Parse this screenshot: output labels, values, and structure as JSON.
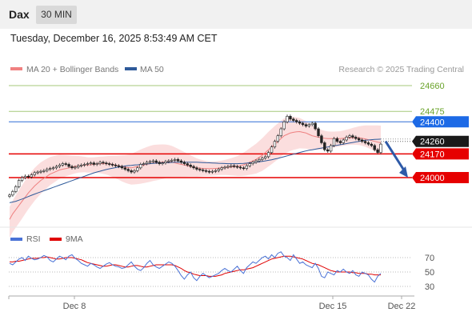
{
  "header": {
    "symbol": "Dax",
    "timeframe": "30 MIN"
  },
  "timestamp": "Tuesday, December 16, 2025 8:53:49 AM CET",
  "legend": {
    "items": [
      {
        "label": "MA 20 + Bollinger Bands",
        "color": "#f08080"
      },
      {
        "label": "MA 50",
        "color": "#2e5a9a"
      }
    ],
    "credit": "Research © 2025 Trading Central"
  },
  "rsi_legend": {
    "items": [
      {
        "label": "RSI",
        "color": "#4a72d6"
      },
      {
        "label": "9MA",
        "color": "#e00000"
      }
    ]
  },
  "chart_data": [
    {
      "type": "candlestick",
      "title": "",
      "x_ticks": [
        "Dec 8",
        "Dec 15",
        "Dec 22"
      ],
      "price_levels": [
        {
          "value": 24660,
          "label": "24660",
          "style": "green-line"
        },
        {
          "value": 24475,
          "label": "24475",
          "style": "green-line"
        },
        {
          "value": 24400,
          "label": "24400",
          "style": "blue-tag"
        },
        {
          "value": 24260,
          "label": "24260",
          "style": "last-price-tag"
        },
        {
          "value": 24170,
          "label": "24170",
          "style": "red-tag"
        },
        {
          "value": 24000,
          "label": "24000",
          "style": "red-tag"
        }
      ],
      "close_series": [
        23875,
        23900,
        23935,
        23980,
        24000,
        24010,
        24005,
        24020,
        24035,
        24040,
        24045,
        24050,
        24060,
        24065,
        24070,
        24080,
        24090,
        24100,
        24095,
        24080,
        24070,
        24075,
        24085,
        24090,
        24095,
        24100,
        24105,
        24095,
        24100,
        24110,
        24105,
        24100,
        24095,
        24090,
        24085,
        24080,
        24070,
        24060,
        24050,
        24040,
        24050,
        24070,
        24095,
        24100,
        24110,
        24115,
        24120,
        24110,
        24100,
        24105,
        24115,
        24120,
        24125,
        24130,
        24120,
        24110,
        24100,
        24090,
        24080,
        24070,
        24060,
        24055,
        24050,
        24045,
        24040,
        24045,
        24050,
        24060,
        24070,
        24075,
        24080,
        24085,
        24080,
        24075,
        24070,
        24065,
        24085,
        24100,
        24110,
        24120,
        24130,
        24140,
        24150,
        24180,
        24220,
        24260,
        24300,
        24350,
        24400,
        24440,
        24420,
        24410,
        24400,
        24390,
        24380,
        24370,
        24380,
        24390,
        24350,
        24300,
        24250,
        24200,
        24190,
        24230,
        24280,
        24260,
        24250,
        24270,
        24290,
        24300,
        24290,
        24280,
        24270,
        24260,
        24250,
        24240,
        24230,
        24200,
        24180,
        24240
      ],
      "ma20_series": [
        23700,
        23740,
        23770,
        23800,
        23830,
        23860,
        23890,
        23915,
        23940,
        23960,
        23980,
        23995,
        24010,
        24025,
        24035,
        24045,
        24055,
        24060,
        24065,
        24070,
        24075,
        24080,
        24085,
        24088,
        24090,
        24090,
        24092,
        24095,
        24098,
        24100,
        24100,
        24100,
        24098,
        24095,
        24090,
        24085,
        24080,
        24075,
        24072,
        24070,
        24075,
        24080,
        24085,
        24090,
        24095,
        24100,
        24104,
        24106,
        24108,
        24110,
        24112,
        24112,
        24110,
        24105,
        24100,
        24095,
        24090,
        24085,
        24080,
        24075,
        24070,
        24068,
        24066,
        24065,
        24064,
        24065,
        24066,
        24068,
        24070,
        24072,
        24074,
        24076,
        24078,
        24080,
        24085,
        24092,
        24100,
        24110,
        24120,
        24130,
        24145,
        24160,
        24180,
        24200,
        24220,
        24240,
        24260,
        24280,
        24300,
        24310,
        24320,
        24325,
        24328,
        24330,
        24325,
        24320,
        24310,
        24300,
        24295,
        24290,
        24285,
        24282,
        24280,
        24280,
        24280,
        24280,
        24280,
        24282,
        24284,
        24285,
        24286,
        24286,
        24285,
        24282,
        24278,
        24272,
        24266,
        24260,
        24255,
        24250
      ],
      "ma50_series": [
        23820,
        23825,
        23830,
        23838,
        23846,
        23855,
        23864,
        23873,
        23882,
        23890,
        23898,
        23906,
        23914,
        23922,
        23930,
        23938,
        23946,
        23954,
        23962,
        23970,
        23978,
        23986,
        23994,
        24002,
        24010,
        24018,
        24026,
        24034,
        24040,
        24046,
        24052,
        24058,
        24063,
        24068,
        24072,
        24076,
        24080,
        24083,
        24086,
        24088,
        24090,
        24092,
        24094,
        24096,
        24098,
        24100,
        24102,
        24104,
        24105,
        24106,
        24107,
        24108,
        24109,
        24110,
        24110,
        24110,
        24110,
        24110,
        24110,
        24110,
        24110,
        24109,
        24108,
        24107,
        24106,
        24105,
        24104,
        24103,
        24102,
        24101,
        24100,
        24100,
        24100,
        24100,
        24101,
        24102,
        24104,
        24106,
        24108,
        24110,
        24113,
        24116,
        24120,
        24124,
        24128,
        24133,
        24138,
        24144,
        24150,
        24156,
        24162,
        24168,
        24174,
        24180,
        24186,
        24191,
        24196,
        24200,
        24204,
        24208,
        24212,
        24216,
        24220,
        24224,
        24228,
        24232,
        24236,
        24240,
        24244,
        24248,
        24252,
        24256,
        24260,
        24264,
        24268,
        24270,
        24272,
        24274,
        24275,
        24276
      ],
      "forecast_arrow": {
        "from": 24260,
        "to": 24000
      }
    },
    {
      "type": "line",
      "title": "RSI",
      "yticks": [
        70,
        50,
        30
      ],
      "ylim": [
        20,
        80
      ],
      "rsi": [
        62,
        60,
        64,
        68,
        70,
        66,
        72,
        69,
        67,
        68,
        70,
        73,
        71,
        66,
        64,
        68,
        72,
        70,
        67,
        72,
        74,
        69,
        66,
        62,
        60,
        58,
        62,
        60,
        57,
        55,
        58,
        61,
        63,
        60,
        58,
        57,
        55,
        56,
        60,
        64,
        58,
        54,
        52,
        56,
        62,
        66,
        60,
        57,
        55,
        58,
        61,
        64,
        62,
        58,
        52,
        45,
        40,
        46,
        50,
        42,
        38,
        44,
        48,
        45,
        42,
        44,
        46,
        48,
        52,
        55,
        52,
        50,
        54,
        58,
        52,
        48,
        56,
        60,
        64,
        62,
        66,
        70,
        72,
        68,
        74,
        70,
        76,
        78,
        72,
        70,
        66,
        74,
        68,
        62,
        64,
        60,
        58,
        56,
        62,
        55,
        44,
        42,
        50,
        48,
        46,
        52,
        50,
        54,
        50,
        48,
        52,
        46,
        44,
        50,
        48,
        46,
        40,
        36,
        44,
        48
      ],
      "ma9": [
        64,
        64,
        65,
        65,
        66,
        67,
        68,
        69,
        69,
        69,
        70,
        70,
        71,
        70,
        69,
        68,
        68,
        69,
        70,
        70,
        70,
        69,
        68,
        67,
        65,
        63,
        62,
        61,
        60,
        59,
        58,
        58,
        59,
        60,
        60,
        59,
        58,
        57,
        57,
        58,
        59,
        59,
        58,
        57,
        57,
        58,
        59,
        60,
        60,
        60,
        60,
        60,
        60,
        59,
        57,
        55,
        52,
        50,
        49,
        47,
        46,
        45,
        45,
        45,
        44,
        44,
        44,
        45,
        46,
        48,
        49,
        50,
        51,
        52,
        53,
        53,
        54,
        55,
        56,
        58,
        60,
        62,
        64,
        66,
        68,
        69,
        70,
        71,
        72,
        72,
        72,
        71,
        70,
        69,
        68,
        66,
        64,
        62,
        61,
        60,
        58,
        56,
        54,
        52,
        51,
        50,
        50,
        50,
        50,
        50,
        49,
        49,
        48,
        48,
        48,
        47,
        47,
        46,
        46,
        46
      ]
    }
  ]
}
